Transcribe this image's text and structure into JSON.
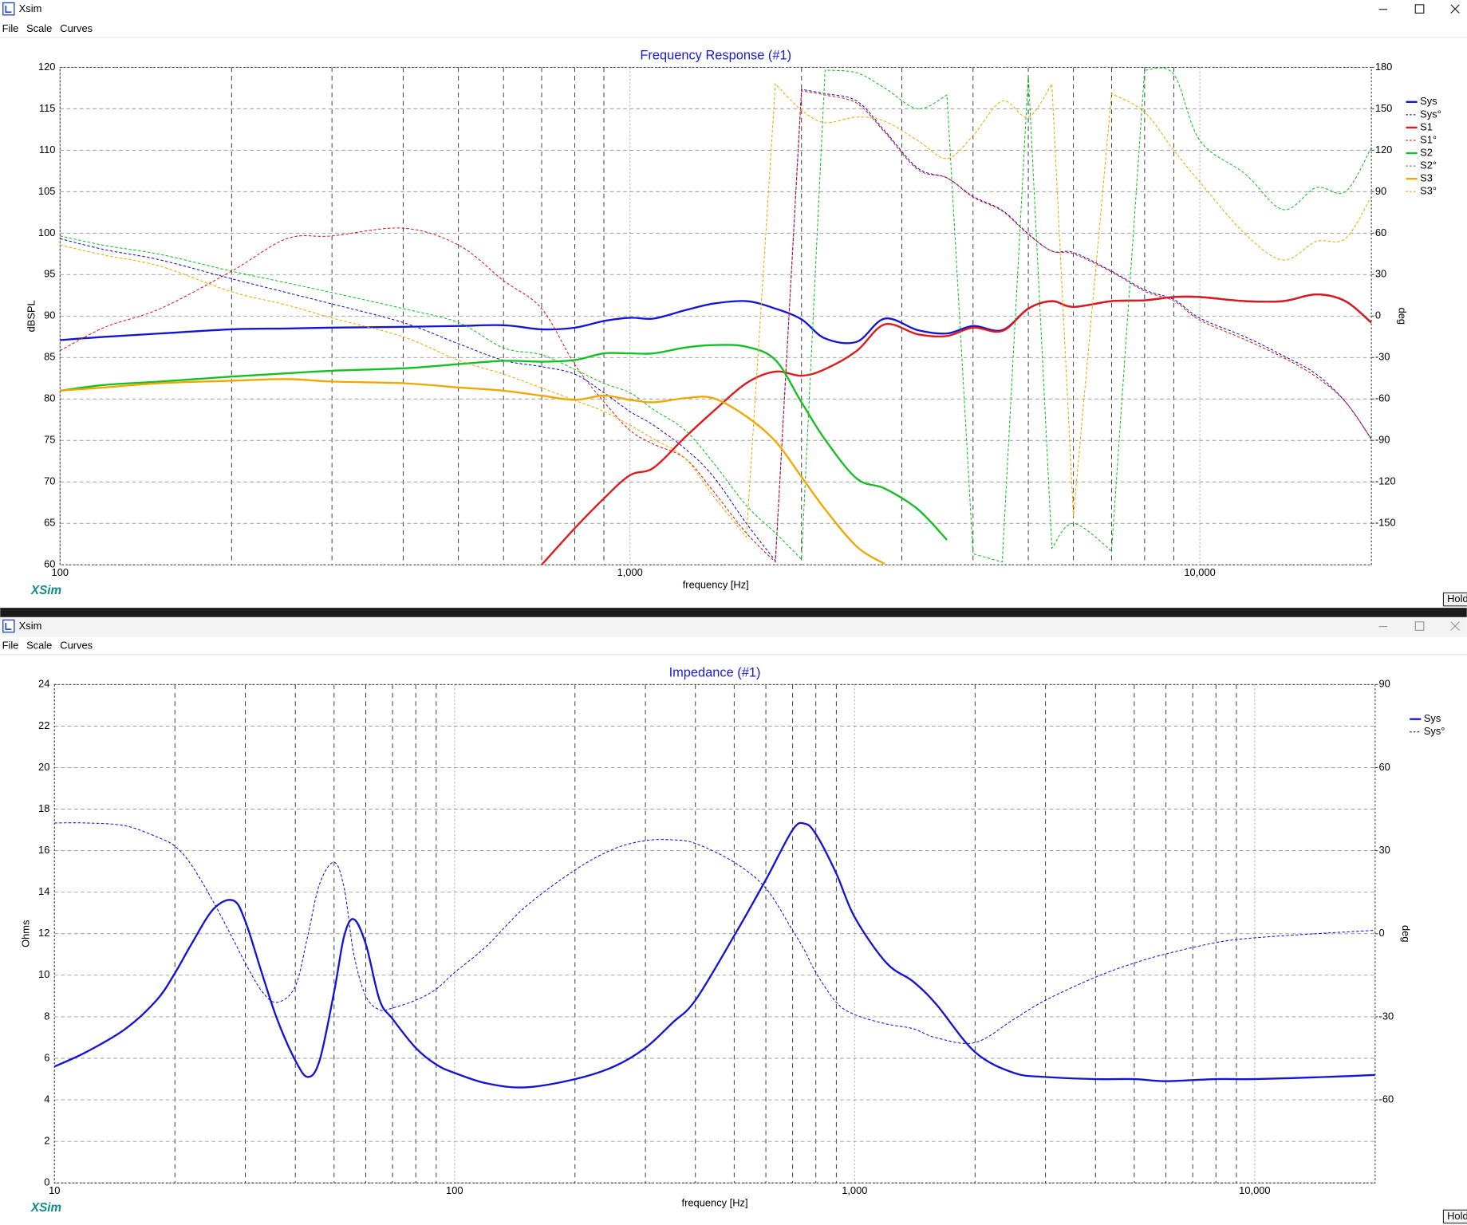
{
  "windows": [
    {
      "title": "Xsim",
      "menu": [
        "File",
        "Scale",
        "Curves"
      ],
      "logo": "XSim",
      "button": "Hold"
    },
    {
      "title": "Xsim",
      "menu": [
        "File",
        "Scale",
        "Curves"
      ],
      "logo": "XSim",
      "button": "Hold"
    }
  ],
  "chart_data": [
    {
      "type": "line",
      "title": "Frequency Response (#1)",
      "xlabel": "frequency [Hz]",
      "ylabel": "dBSPL",
      "y2label": "deg",
      "log_x": true,
      "grid": true,
      "legend": "upper right",
      "xlim": [
        100,
        20000
      ],
      "xticks": [
        {
          "value": 100,
          "label": "100"
        },
        {
          "value": 1000,
          "label": "1,000"
        },
        {
          "value": 10000,
          "label": "10,000"
        }
      ],
      "ylim": [
        60,
        120
      ],
      "yticks": [
        60,
        65,
        70,
        75,
        80,
        85,
        90,
        95,
        100,
        105,
        110,
        115,
        120
      ],
      "y2lim": [
        -180,
        180
      ],
      "y2ticks": [
        -150,
        -120,
        -90,
        -60,
        -30,
        0,
        30,
        60,
        90,
        120,
        150,
        180
      ],
      "x": [
        100,
        120,
        150,
        200,
        250,
        300,
        400,
        500,
        600,
        700,
        800,
        900,
        1000,
        1100,
        1250,
        1400,
        1600,
        1800,
        2000,
        2200,
        2500,
        2800,
        3200,
        3600,
        4000,
        4500,
        5000,
        5500,
        6000,
        7000,
        8000,
        9000,
        10000,
        12000,
        14000,
        16000,
        18000,
        20000
      ],
      "series": [
        {
          "name": "Sys",
          "color": "#1414d6",
          "style": "solid",
          "values": [
            87.1,
            87.5,
            87.9,
            88.4,
            88.5,
            88.6,
            88.7,
            88.8,
            88.9,
            88.4,
            88.6,
            89.4,
            89.8,
            89.7,
            90.7,
            91.5,
            91.8,
            90.9,
            89.6,
            87.3,
            86.9,
            89.7,
            88.3,
            87.9,
            88.8,
            88.3,
            90.9,
            91.8,
            91.1,
            91.8,
            91.9,
            92.3,
            92.3,
            91.8,
            91.8,
            92.6,
            91.8,
            89.2
          ]
        },
        {
          "name": "Sys°",
          "color": "#1414d6",
          "style": "dashed",
          "axis": "y2",
          "values": [
            56,
            48,
            40.6,
            27,
            17,
            8.8,
            -4.7,
            -20,
            -32,
            -36.6,
            -42,
            -55.5,
            -69,
            -79,
            -96,
            -116,
            -150,
            -177,
            164,
            161,
            155.6,
            134,
            107,
            100,
            86.6,
            76.5,
            59.5,
            47,
            46,
            32.5,
            19,
            12,
            -1.5,
            -15,
            -28.6,
            -42,
            -62,
            -89
          ]
        },
        {
          "name": "S1",
          "color": "#e01818",
          "style": "solid",
          "values": [
            null,
            null,
            null,
            null,
            null,
            null,
            null,
            null,
            null,
            60,
            64.4,
            68,
            70.8,
            71.7,
            75.4,
            78.5,
            81.9,
            83.3,
            82.8,
            83.6,
            85.8,
            89.0,
            87.8,
            87.6,
            88.6,
            88.2,
            90.9,
            91.8,
            91.1,
            91.8,
            91.9,
            92.3,
            92.3,
            91.8,
            91.8,
            92.6,
            91.8,
            89.2
          ]
        },
        {
          "name": "S1°",
          "color": "#e01818",
          "style": "dashed",
          "axis": "y2",
          "values": [
            -25,
            -8,
            5.4,
            32.5,
            56,
            58,
            63.6,
            51.4,
            25.7,
            5.4,
            -35,
            -62,
            -82.6,
            -92.7,
            -103,
            -126.6,
            -157,
            -178,
            163,
            160,
            154,
            133,
            106,
            100,
            86,
            76,
            59,
            47,
            45,
            32,
            18,
            11,
            -3,
            -17,
            -30,
            -44,
            -62,
            -89
          ]
        },
        {
          "name": "S2",
          "color": "#12c022",
          "style": "solid",
          "values": [
            81,
            81.7,
            82.1,
            82.7,
            83.1,
            83.4,
            83.7,
            84.2,
            84.6,
            84.5,
            84.7,
            85.5,
            85.5,
            85.5,
            86.2,
            86.5,
            86.3,
            84.7,
            79.6,
            75.1,
            70.4,
            69.2,
            66.7,
            63,
            null,
            null,
            null,
            null,
            null,
            null,
            null,
            null,
            null,
            null,
            null,
            null,
            null,
            null
          ]
        },
        {
          "name": "S2°",
          "color": "#12c022",
          "style": "dashed",
          "axis": "y2",
          "values": [
            58,
            51,
            44.6,
            32.5,
            24,
            17,
            5.4,
            -4.7,
            -23,
            -28,
            -38.6,
            -48.7,
            -55.5,
            -67.7,
            -82.6,
            -106,
            -137,
            -157,
            -176,
            178,
            176,
            165,
            150,
            160,
            -172,
            -178,
            175,
            -168,
            -150,
            -170,
            178,
            175,
            127,
            103,
            77,
            93,
            90,
            122
          ]
        },
        {
          "name": "S3",
          "color": "#f0a800",
          "style": "solid",
          "values": [
            81,
            81.4,
            81.9,
            82.2,
            82.4,
            82.1,
            81.9,
            81.4,
            81,
            80.4,
            79.9,
            80.4,
            79.9,
            79.6,
            80.1,
            80.1,
            77.9,
            74.9,
            70.6,
            66.7,
            62.2,
            60.1,
            null,
            null,
            null,
            null,
            null,
            null,
            null,
            null,
            null,
            null,
            null,
            null,
            null,
            null,
            null,
            null
          ]
        },
        {
          "name": "S3°",
          "color": "#f0a800",
          "style": "dashed",
          "axis": "y2",
          "values": [
            51.4,
            44,
            36,
            17.6,
            8,
            -1.4,
            -15,
            -32,
            -42,
            -52,
            -61,
            -69,
            -79,
            -89,
            -103,
            -130,
            -160,
            168,
            149,
            140,
            144,
            141,
            127,
            114,
            130.6,
            155.6,
            144,
            168,
            -145,
            161,
            147.5,
            120,
            97,
            59.5,
            40.6,
            54,
            56,
            86.6
          ]
        }
      ]
    },
    {
      "type": "line",
      "title": "Impedance (#1)",
      "xlabel": "frequency [Hz]",
      "ylabel": "Ohms",
      "y2label": "deg",
      "log_x": true,
      "grid": true,
      "legend": "upper right",
      "xlim": [
        10,
        20000
      ],
      "xticks": [
        {
          "value": 10,
          "label": "10"
        },
        {
          "value": 100,
          "label": "100"
        },
        {
          "value": 1000,
          "label": "1,000"
        },
        {
          "value": 10000,
          "label": "10,000"
        }
      ],
      "ylim": [
        0,
        24
      ],
      "yticks": [
        0,
        2,
        4,
        6,
        8,
        10,
        12,
        14,
        16,
        18,
        20,
        22,
        24
      ],
      "y2lim": [
        -90,
        90
      ],
      "y2ticks": [
        -60,
        -30,
        0,
        30,
        60,
        90
      ],
      "x": [
        10,
        12,
        15,
        18,
        20,
        22,
        25,
        28,
        30,
        33,
        36,
        40,
        43,
        46,
        50,
        53,
        56,
        60,
        65,
        70,
        80,
        90,
        100,
        120,
        150,
        200,
        250,
        300,
        350,
        400,
        500,
        600,
        700,
        750,
        800,
        900,
        1000,
        1200,
        1400,
        1600,
        2000,
        2500,
        3000,
        4000,
        5000,
        6000,
        8000,
        10000,
        15000,
        20000
      ],
      "series": [
        {
          "name": "Sys",
          "color": "#1414d6",
          "style": "solid",
          "values": [
            5.6,
            6.3,
            7.4,
            8.8,
            10.1,
            11.5,
            13.2,
            13.6,
            12.6,
            10.1,
            7.9,
            5.9,
            5.1,
            5.9,
            9.2,
            11.9,
            12.7,
            11.5,
            8.8,
            7.9,
            6.5,
            5.7,
            5.3,
            4.8,
            4.6,
            5,
            5.6,
            6.5,
            7.7,
            8.8,
            11.9,
            14.6,
            17,
            17.3,
            16.8,
            14.9,
            12.8,
            10.6,
            9.7,
            8.6,
            6.3,
            5.3,
            5.1,
            5,
            5,
            4.9,
            5,
            5,
            5.1,
            5.2
          ]
        },
        {
          "name": "Sys°",
          "color": "#1414d6",
          "style": "dashed",
          "axis": "y2",
          "values": [
            40,
            40,
            39,
            35,
            31.6,
            24.8,
            11.3,
            -2.2,
            -10.6,
            -20.8,
            -24.8,
            -19,
            -0.5,
            18,
            25.8,
            16.4,
            -7.3,
            -22.5,
            -27.5,
            -26.8,
            -24,
            -20,
            -14,
            -4.6,
            9.6,
            23,
            30.6,
            33.6,
            33.9,
            32.6,
            25.8,
            16.4,
            1.2,
            -6,
            -14,
            -24.8,
            -29.2,
            -32.6,
            -34.3,
            -37.6,
            -39.3,
            -30.9,
            -24,
            -15.7,
            -10.6,
            -7.3,
            -3.2,
            -1.5,
            0.2,
            1.2
          ]
        }
      ]
    }
  ]
}
